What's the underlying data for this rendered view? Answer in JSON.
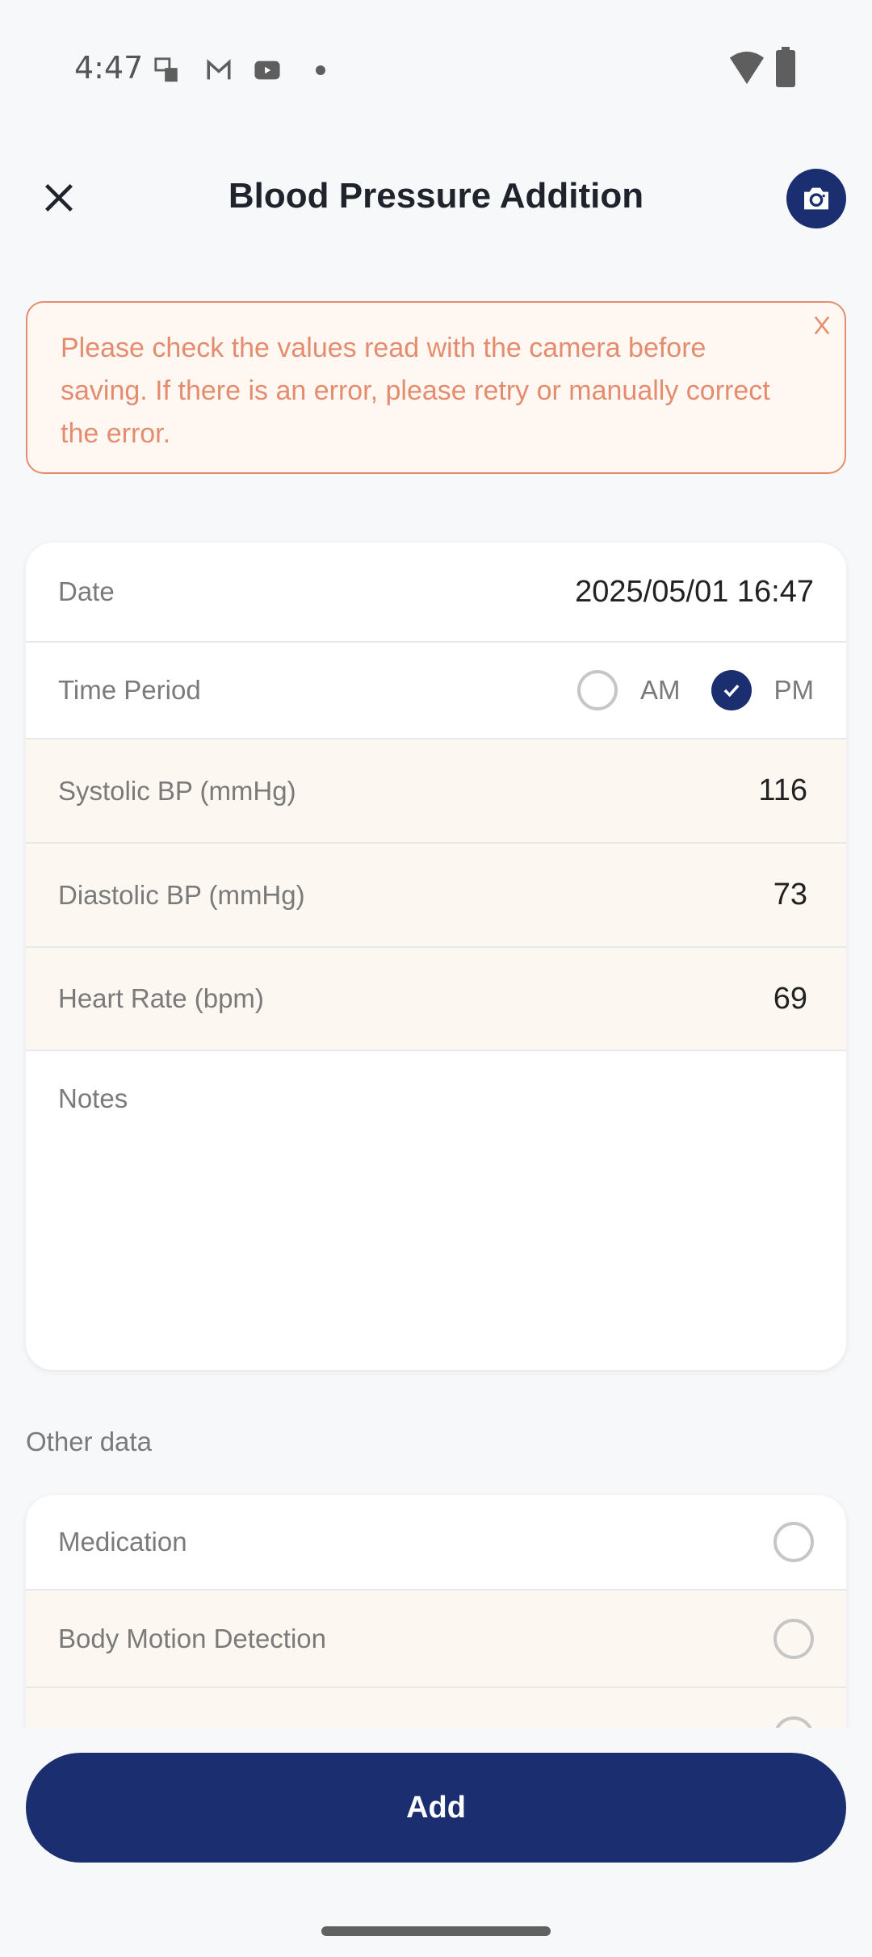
{
  "status_bar": {
    "time": "4:47"
  },
  "header": {
    "title": "Blood Pressure Addition"
  },
  "alert": {
    "message": "Please check the values read with the camera before saving. If there is an error, please retry or manually correct the error."
  },
  "form": {
    "date": {
      "label": "Date",
      "value": "2025/05/01 16:47"
    },
    "time_period": {
      "label": "Time Period",
      "options": [
        "AM",
        "PM"
      ],
      "selected": "PM"
    },
    "systolic": {
      "label": "Systolic BP (mmHg)",
      "value": "116"
    },
    "diastolic": {
      "label": "Diastolic BP (mmHg)",
      "value": "73"
    },
    "heart_rate": {
      "label": "Heart Rate (bpm)",
      "value": "69"
    },
    "notes": {
      "label": "Notes",
      "value": ""
    }
  },
  "other": {
    "title": "Other data",
    "items": [
      {
        "label": "Medication",
        "checked": false
      },
      {
        "label": "Body Motion Detection",
        "checked": false
      }
    ]
  },
  "add_label": "Add",
  "colors": {
    "primary": "#1b2e70",
    "alert": "#e58c6e",
    "tint": "#fdf7f1"
  }
}
